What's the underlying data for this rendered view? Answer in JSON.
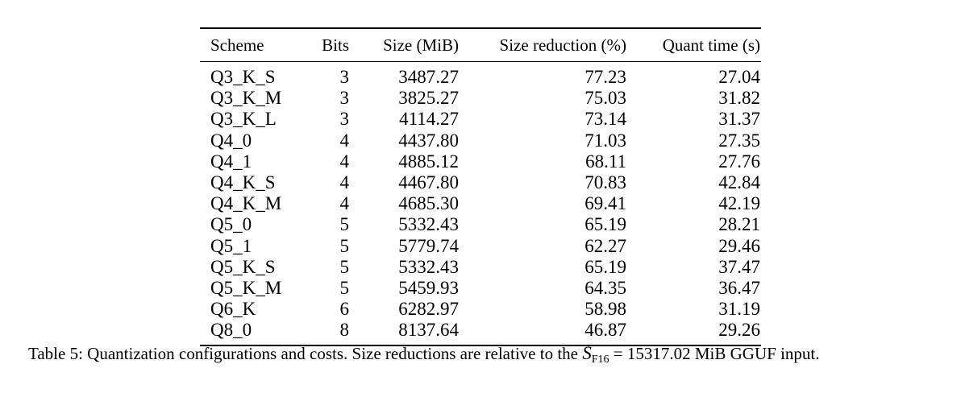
{
  "table": {
    "headers": {
      "scheme": "Scheme",
      "bits": "Bits",
      "size": "Size (MiB)",
      "reduction": "Size reduction (%)",
      "quant_time": "Quant time (s)"
    },
    "rows": [
      {
        "scheme": "Q3_K_S",
        "bits": "3",
        "size": "3487.27",
        "reduction": "77.23",
        "quant_time": "27.04"
      },
      {
        "scheme": "Q3_K_M",
        "bits": "3",
        "size": "3825.27",
        "reduction": "75.03",
        "quant_time": "31.82"
      },
      {
        "scheme": "Q3_K_L",
        "bits": "3",
        "size": "4114.27",
        "reduction": "73.14",
        "quant_time": "31.37"
      },
      {
        "scheme": "Q4_0",
        "bits": "4",
        "size": "4437.80",
        "reduction": "71.03",
        "quant_time": "27.35"
      },
      {
        "scheme": "Q4_1",
        "bits": "4",
        "size": "4885.12",
        "reduction": "68.11",
        "quant_time": "27.76"
      },
      {
        "scheme": "Q4_K_S",
        "bits": "4",
        "size": "4467.80",
        "reduction": "70.83",
        "quant_time": "42.84"
      },
      {
        "scheme": "Q4_K_M",
        "bits": "4",
        "size": "4685.30",
        "reduction": "69.41",
        "quant_time": "42.19"
      },
      {
        "scheme": "Q5_0",
        "bits": "5",
        "size": "5332.43",
        "reduction": "65.19",
        "quant_time": "28.21"
      },
      {
        "scheme": "Q5_1",
        "bits": "5",
        "size": "5779.74",
        "reduction": "62.27",
        "quant_time": "29.46"
      },
      {
        "scheme": "Q5_K_S",
        "bits": "5",
        "size": "5332.43",
        "reduction": "65.19",
        "quant_time": "37.47"
      },
      {
        "scheme": "Q5_K_M",
        "bits": "5",
        "size": "5459.93",
        "reduction": "64.35",
        "quant_time": "36.47"
      },
      {
        "scheme": "Q6_K",
        "bits": "6",
        "size": "6282.97",
        "reduction": "58.98",
        "quant_time": "31.19"
      },
      {
        "scheme": "Q8_0",
        "bits": "8",
        "size": "8137.64",
        "reduction": "46.87",
        "quant_time": "29.26"
      }
    ]
  },
  "caption": {
    "label": "Table 5:",
    "text_before": "Quantization configurations and costs. Size reductions are relative to the",
    "math_symbol": "S",
    "math_subscript": "F16",
    "math_equals": "= 15317.02",
    "text_after": "MiB GGUF input."
  }
}
